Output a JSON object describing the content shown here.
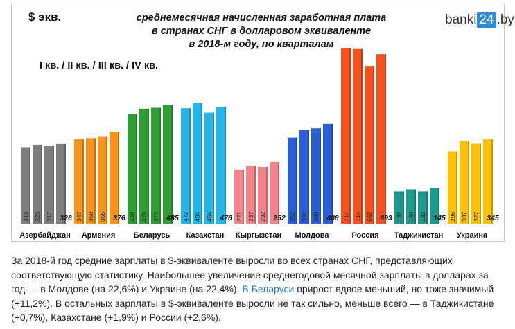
{
  "logo": {
    "prefix": "banki",
    "box": "24",
    "suffix": ".by"
  },
  "chart_data": {
    "type": "bar",
    "unit_label": "$ экв.",
    "title_lines": [
      "среднемесячная начисленная заработная плата",
      "в странах СНГ в долларовом эквиваленте",
      "в 2018-м году, по кварталам"
    ],
    "quarters_label": "I кв. / II кв. / III кв. / IV кв.",
    "series_names": [
      "I кв.",
      "II кв.",
      "III кв.",
      "IV кв."
    ],
    "categories": [
      "Азербайджан",
      "Армения",
      "Беларусь",
      "Казахстан",
      "Кыргызстан",
      "Молдова",
      "Россия",
      "Таджикистан",
      "Украина"
    ],
    "values": [
      [
        313,
        323,
        317,
        326
      ],
      [
        347,
        350,
        355,
        376
      ],
      [
        448,
        470,
        474,
        485
      ],
      [
        472,
        494,
        454,
        476
      ],
      [
        221,
        237,
        232,
        252
      ],
      [
        352,
        382,
        390,
        408
      ],
      [
        717,
        714,
        642,
        693
      ],
      [
        132,
        140,
        132,
        145
      ],
      [
        296,
        337,
        327,
        345
      ]
    ],
    "colors": [
      "#7f7f7f",
      "#f7931e",
      "#2e9e33",
      "#25b5e8",
      "#f4838a",
      "#2b5fd9",
      "#f4511e",
      "#1d9a8c",
      "#ffc107"
    ],
    "ylim": [
      0,
      750
    ],
    "grid": false,
    "legend": "none"
  },
  "article": {
    "text_1": "За 2018-й год средние зарплаты в $-эквиваленте выросли во всех странах СНГ, представляющих соответствующую статистику. Наибольшее увеличение среднегодовой месячной зарплаты в долларах за год — в Молдове (на 22,6%) и Украине (на 22,4%). ",
    "link": "В Беларуси",
    "text_2": " прирост вдвое меньший, но тоже значимый (+11,2%). В остальных зарплаты в $-эквиваленте выросли не так сильно, меньше всего — в Таджикистане (+0,7%), Казахстане (+1,9%) и России (+2,6%)."
  }
}
